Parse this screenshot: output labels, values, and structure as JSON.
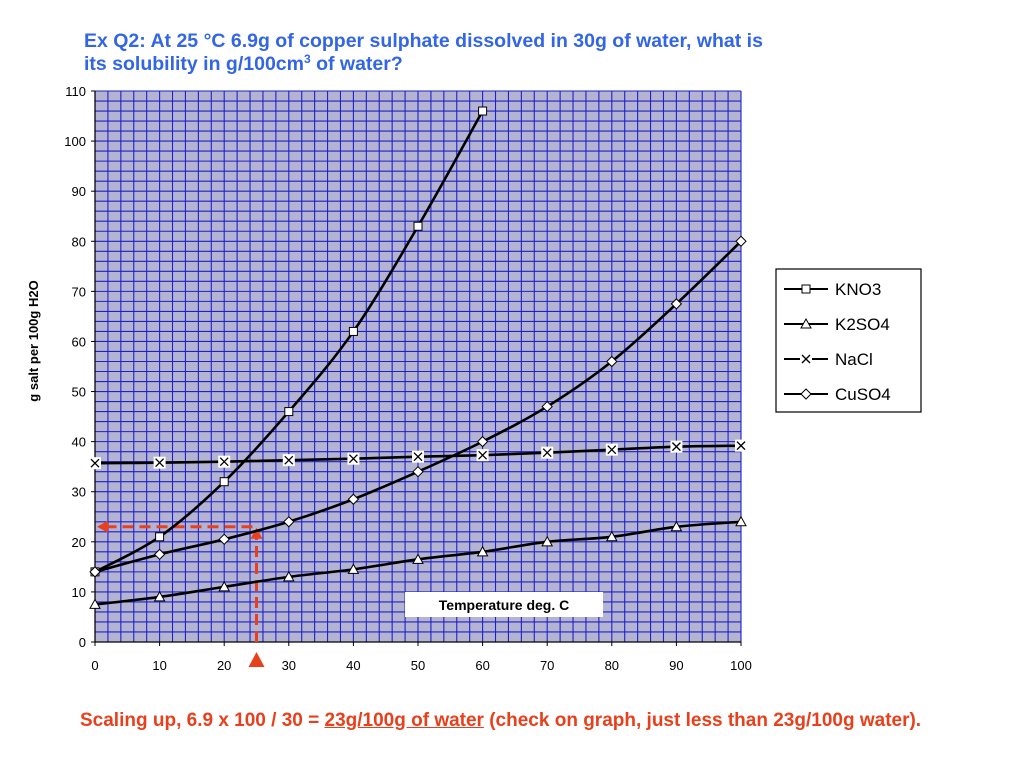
{
  "question": {
    "line1": "Ex Q2: At 25 °C 6.9g of copper sulphate dissolved in 30g of water, what is",
    "line2_pre": "its solubility in g/100cm",
    "line2_sup": "3",
    "line2_post": " of water?"
  },
  "answer": {
    "pre": "Scaling up, 6.9 x 100 / 30 = ",
    "highlight": "23g/100g of water",
    "post": " (check on graph, just less than 23g/100g water)."
  },
  "colors": {
    "plot_background": "#b4b4d2",
    "grid": "#1d21c8",
    "series": "#000000",
    "arrow": "#e8401c",
    "question_text": "#3366e6"
  },
  "chart_data": {
    "type": "line",
    "title": "",
    "xlabel": "Temperature deg. C",
    "ylabel": "g salt per 100g H2O",
    "xlim": [
      0,
      100
    ],
    "ylim": [
      0,
      110
    ],
    "x_ticks": [
      0,
      10,
      20,
      30,
      40,
      50,
      60,
      70,
      80,
      90,
      100
    ],
    "y_ticks": [
      0,
      10,
      20,
      30,
      40,
      50,
      60,
      70,
      80,
      90,
      100,
      110
    ],
    "grid": true,
    "legend_position": "right",
    "series": [
      {
        "name": "KNO3",
        "marker": "square",
        "x": [
          0,
          10,
          20,
          30,
          40,
          50,
          60
        ],
        "y": [
          14,
          21,
          32,
          46,
          62,
          83,
          106
        ]
      },
      {
        "name": "K2SO4",
        "marker": "triangle",
        "x": [
          0,
          10,
          20,
          30,
          40,
          50,
          60,
          70,
          80,
          90,
          100
        ],
        "y": [
          7.5,
          9,
          11,
          13,
          14.5,
          16.5,
          18,
          20,
          21,
          23,
          24
        ]
      },
      {
        "name": "NaCl",
        "marker": "x",
        "x": [
          0,
          10,
          20,
          30,
          40,
          50,
          60,
          70,
          80,
          90,
          100
        ],
        "y": [
          35.7,
          35.8,
          36,
          36.3,
          36.6,
          37,
          37.3,
          37.8,
          38.4,
          39,
          39.2
        ]
      },
      {
        "name": "CuSO4",
        "marker": "diamond",
        "x": [
          0,
          10,
          20,
          30,
          40,
          50,
          60,
          70,
          80,
          90,
          100
        ],
        "y": [
          14,
          17.5,
          20.5,
          24,
          28.5,
          34,
          40,
          47,
          56,
          67.5,
          80
        ]
      }
    ],
    "annotation": {
      "x": 25,
      "y": 23
    }
  }
}
